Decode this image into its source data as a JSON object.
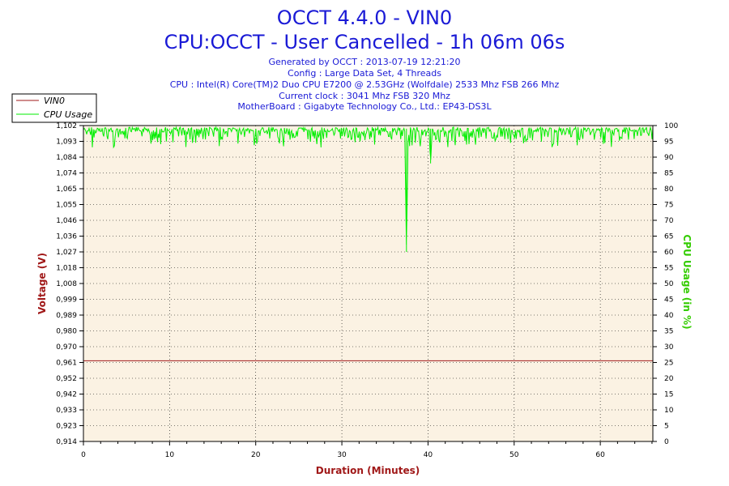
{
  "header": {
    "title_line1": "OCCT 4.4.0 - VIN0",
    "title_line2": "CPU:OCCT - User Cancelled - 1h 06m 06s",
    "info_lines": [
      "Generated by OCCT : 2013-07-19 12:21:20",
      "Config : Large Data Set, 4 Threads",
      "CPU : Intel(R) Core(TM)2 Duo CPU E7200 @ 2.53GHz (Wolfdale) 2533 Mhz FSB 266 Mhz",
      "Current clock : 3041 Mhz FSB 320 Mhz",
      "MotherBoard : Gigabyte Technology Co., Ltd.: EP43-DS3L"
    ]
  },
  "colors": {
    "title": "#1a1ad6",
    "plot_background": "#fbf2e3",
    "voltage": "#a01818",
    "cpu_usage": "#00ee00",
    "right_axis_label": "#33cc00",
    "grid": "#000000"
  },
  "chart_data": {
    "type": "line",
    "xlabel": "Duration (Minutes)",
    "ylabel": "Voltage (V)",
    "y2label": "CPU Usage (in %)",
    "xlim": [
      0,
      66.1
    ],
    "ylim": [
      0.914,
      1.102
    ],
    "y2lim": [
      0,
      100
    ],
    "x_ticks": [
      "0",
      "10",
      "20",
      "30",
      "40",
      "50",
      "60"
    ],
    "y_ticks": [
      "0,914",
      "0,923",
      "0,933",
      "0,942",
      "0,952",
      "0,961",
      "0,970",
      "0,980",
      "0,989",
      "0,999",
      "1,008",
      "1,018",
      "1,027",
      "1,036",
      "1,046",
      "1,055",
      "1,065",
      "1,074",
      "1,084",
      "1,093",
      "1,102"
    ],
    "y2_ticks": [
      "0",
      "5",
      "10",
      "15",
      "20",
      "25",
      "30",
      "35",
      "40",
      "45",
      "50",
      "55",
      "60",
      "65",
      "70",
      "75",
      "80",
      "85",
      "90",
      "95",
      "100"
    ],
    "grid": true,
    "legend_position": "top-left",
    "series": [
      {
        "name": "VIN0",
        "axis": "left",
        "x": [
          0,
          66.1
        ],
        "values": [
          0.962,
          0.962
        ]
      },
      {
        "name": "CPU Usage",
        "axis": "right",
        "x": [
          0,
          2.5,
          5,
          7.5,
          9.5,
          12,
          13,
          16,
          20,
          22,
          25,
          28,
          31,
          35,
          37.3,
          37.5,
          37.7,
          40.1,
          40.3,
          40.5,
          44,
          48,
          52,
          56,
          59.5,
          62,
          65,
          66.1
        ],
        "values": [
          99,
          98,
          99,
          97,
          96,
          98,
          95,
          99,
          98,
          99,
          97,
          99,
          98,
          99,
          99,
          60,
          99,
          99,
          88,
          99,
          98,
          99,
          97,
          99,
          96,
          99,
          98,
          99
        ]
      }
    ]
  }
}
